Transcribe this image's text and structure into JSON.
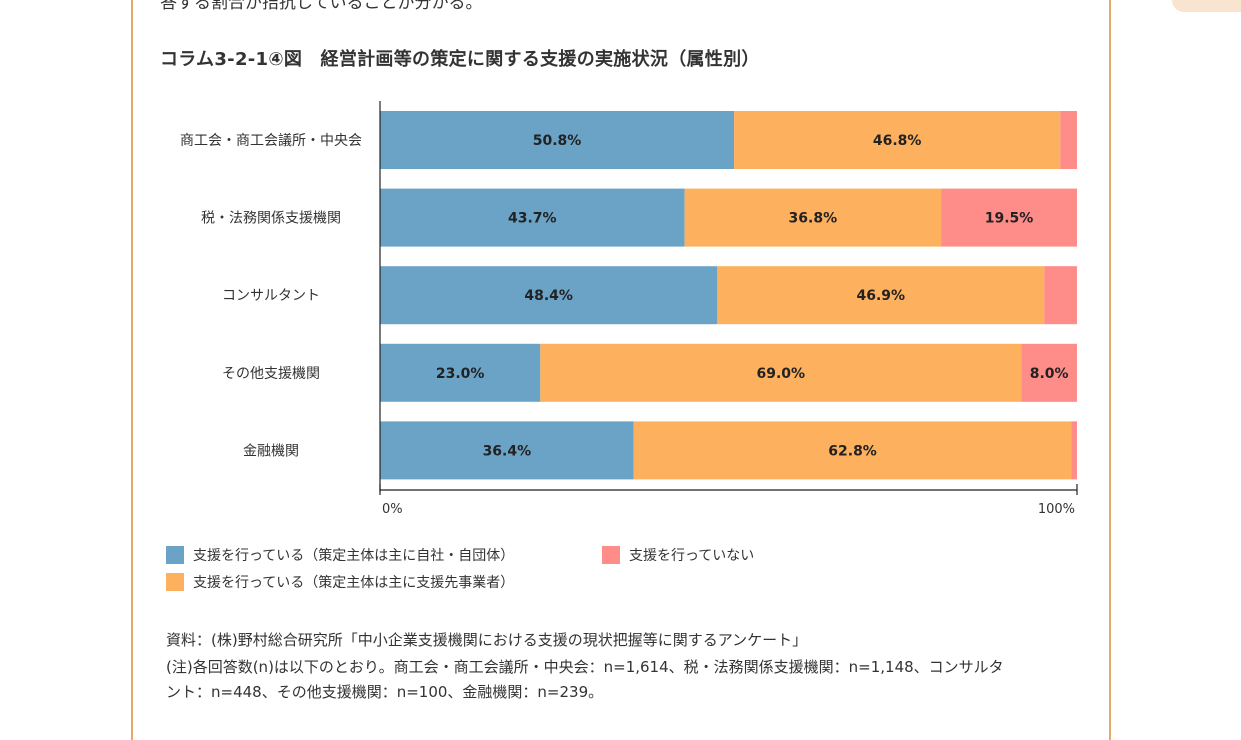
{
  "intro_text": "答する割合が拮抗していることが分かる。",
  "figure_title": "コラム3-2-1④図　経営計画等の策定に関する支援の実施状況（属性別）",
  "colors": {
    "self": "#6aa3c6",
    "client": "#fdb05e",
    "none": "#fe8c88",
    "frame": "#e8a86a"
  },
  "chart_data": {
    "type": "bar",
    "orientation": "horizontal",
    "stacked": true,
    "categories": [
      "商工会・商工会議所・中央会",
      "税・法務関係支援機関",
      "コンサルタント",
      "その他支援機関",
      "金融機関"
    ],
    "series": [
      {
        "name": "支援を行っている（策定主体は主に自社・自団体）",
        "values": [
          50.8,
          43.7,
          48.4,
          23.0,
          36.4
        ],
        "labels": [
          "50.8%",
          "43.7%",
          "48.4%",
          "23.0%",
          "36.4%"
        ]
      },
      {
        "name": "支援を行っている（策定主体は主に支援先事業者）",
        "values": [
          46.8,
          36.8,
          46.9,
          69.0,
          62.8
        ],
        "labels": [
          "46.8%",
          "36.8%",
          "46.9%",
          "69.0%",
          "62.8%"
        ]
      },
      {
        "name": "支援を行っていない",
        "values": [
          2.4,
          19.5,
          4.7,
          8.0,
          0.8
        ],
        "labels": [
          "",
          "19.5%",
          "",
          "8.0%",
          ""
        ]
      }
    ],
    "x_ticks": [
      "0%",
      "100%"
    ],
    "xlim": [
      0,
      100
    ],
    "legend_position": "bottom"
  },
  "legend": [
    {
      "label": "支援を行っている（策定主体は主に自社・自団体）"
    },
    {
      "label": "支援を行っていない"
    },
    {
      "label": "支援を行っている（策定主体は主に支援先事業者）"
    }
  ],
  "source_lines": [
    "資料：(株)野村総合研究所「中小企業支援機関における支援の現状把握等に関するアンケート」",
    "(注)各回答数(n)は以下のとおり。商工会・商工会議所・中央会：n=1,614、税・法務関係支援機関：n=1,148、コンサルタ",
    "ント：n=448、その他支援機関：n=100、金融機関：n=239。"
  ]
}
